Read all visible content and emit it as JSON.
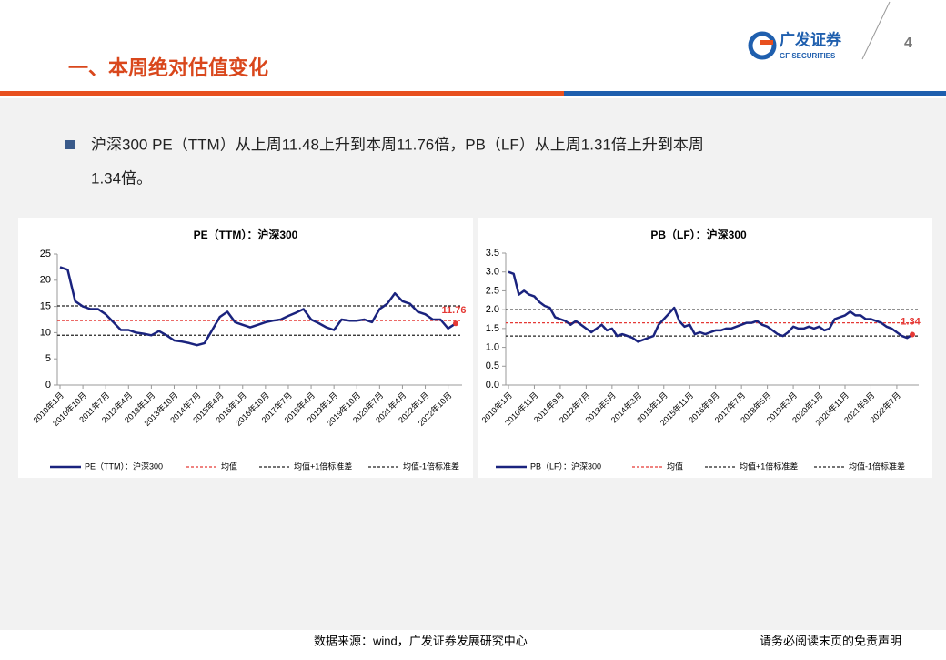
{
  "header": {
    "title": "一、本周绝对估值变化",
    "logo_cn": "广发证券",
    "logo_en": "GF SECURITIES",
    "page": "4"
  },
  "bullet": {
    "line1": "沪深300 PE（TTM）从上周11.48上升到本周11.76倍，PB（LF）从上周1.31倍上升到本周",
    "line2": "1.34倍。"
  },
  "footer": {
    "source": "数据来源：wind，广发证券发展研究中心",
    "disclaimer": "请务必阅读末页的免责声明"
  },
  "chart_data": [
    {
      "type": "line",
      "title": "PE（TTM）：沪深300",
      "categories": [
        "2010年1月",
        null,
        null,
        "2010年10月",
        null,
        null,
        "2011年7月",
        null,
        null,
        "2012年4月",
        null,
        null,
        "2013年1月",
        null,
        null,
        "2013年10月",
        null,
        null,
        "2014年7月",
        null,
        null,
        "2015年4月",
        null,
        null,
        "2016年1月",
        null,
        null,
        "2016年10月",
        null,
        null,
        "2017年7月",
        null,
        null,
        "2018年4月",
        null,
        null,
        "2019年1月",
        null,
        null,
        "2019年10月",
        null,
        null,
        "2020年7月",
        null,
        null,
        "2021年4月",
        null,
        null,
        "2022年1月",
        null,
        null,
        "2022年10月",
        null
      ],
      "series": [
        {
          "name": "PE（TTM）：沪深300",
          "color": "#1a237e",
          "values": [
            22.5,
            22,
            16,
            15,
            14.5,
            14.5,
            13.5,
            12,
            10.5,
            10.5,
            10,
            9.8,
            9.5,
            10.3,
            9.5,
            8.5,
            8.3,
            8,
            7.6,
            8,
            10.5,
            13,
            14,
            12,
            11.5,
            11,
            11.5,
            12,
            12.3,
            12.5,
            13.2,
            13.8,
            14.5,
            12.5,
            11.8,
            11,
            10.5,
            12.5,
            12.3,
            12.3,
            12.5,
            12,
            14.5,
            15.5,
            17.5,
            16,
            15.5,
            14,
            13.5,
            12.5,
            12.5,
            10.8,
            11.76
          ]
        }
      ],
      "reference_lines": [
        {
          "name": "均值",
          "color": "#e53935",
          "value": 12.3
        },
        {
          "name": "均值+1倍标准差",
          "color": "#222222",
          "value": 15.1
        },
        {
          "name": "均值-1倍标准差",
          "color": "#222222",
          "value": 9.5
        }
      ],
      "ylim": [
        0,
        25
      ],
      "yticks": [
        0,
        5,
        10,
        15,
        20,
        25
      ],
      "end_color": "#e53935"
    },
    {
      "type": "line",
      "title": "PB（LF）：沪深300",
      "categories": [
        "2010年1月",
        null,
        null,
        null,
        null,
        "2010年11月",
        null,
        null,
        null,
        null,
        "2011年9月",
        null,
        null,
        null,
        null,
        "2012年7月",
        null,
        null,
        null,
        null,
        "2013年5月",
        null,
        null,
        null,
        null,
        "2014年3月",
        null,
        null,
        null,
        null,
        "2015年1月",
        null,
        null,
        null,
        null,
        "2015年11月",
        null,
        null,
        null,
        null,
        "2016年9月",
        null,
        null,
        null,
        null,
        "2017年7月",
        null,
        null,
        null,
        null,
        "2018年5月",
        null,
        null,
        null,
        null,
        "2019年3月",
        null,
        null,
        null,
        null,
        "2020年1月",
        null,
        null,
        null,
        null,
        "2020年11月",
        null,
        null,
        null,
        null,
        "2021年9月",
        null,
        null,
        null,
        null,
        "2022年7月",
        null,
        null,
        null
      ],
      "series": [
        {
          "name": "PB（LF）：沪深300",
          "color": "#1a237e",
          "values": [
            3.0,
            2.95,
            2.4,
            2.5,
            2.4,
            2.35,
            2.2,
            2.1,
            2.05,
            1.8,
            1.75,
            1.7,
            1.6,
            1.7,
            1.6,
            1.5,
            1.4,
            1.5,
            1.6,
            1.45,
            1.5,
            1.3,
            1.35,
            1.3,
            1.25,
            1.15,
            1.2,
            1.25,
            1.3,
            1.6,
            1.75,
            1.9,
            2.05,
            1.7,
            1.55,
            1.6,
            1.35,
            1.4,
            1.35,
            1.4,
            1.45,
            1.45,
            1.5,
            1.5,
            1.55,
            1.6,
            1.65,
            1.65,
            1.7,
            1.6,
            1.55,
            1.45,
            1.35,
            1.3,
            1.4,
            1.55,
            1.5,
            1.5,
            1.55,
            1.5,
            1.55,
            1.45,
            1.5,
            1.75,
            1.8,
            1.85,
            1.95,
            1.85,
            1.85,
            1.75,
            1.75,
            1.7,
            1.65,
            1.55,
            1.5,
            1.4,
            1.3,
            1.25,
            1.34
          ]
        }
      ],
      "reference_lines": [
        {
          "name": "均值",
          "color": "#e53935",
          "value": 1.65
        },
        {
          "name": "均值+1倍标准差",
          "color": "#222222",
          "value": 2.0
        },
        {
          "name": "均值-1倍标准差",
          "color": "#222222",
          "value": 1.3
        }
      ],
      "ylim": [
        0,
        3.5
      ],
      "yticks": [
        {
          "value": 0,
          "label": "0.0"
        },
        0.5,
        {
          "value": 1,
          "label": "1.0"
        },
        1.5,
        {
          "value": 2,
          "label": "2.0"
        },
        2.5,
        {
          "value": 3,
          "label": "3.0"
        },
        3.5
      ],
      "end_color": "#e53935"
    }
  ]
}
